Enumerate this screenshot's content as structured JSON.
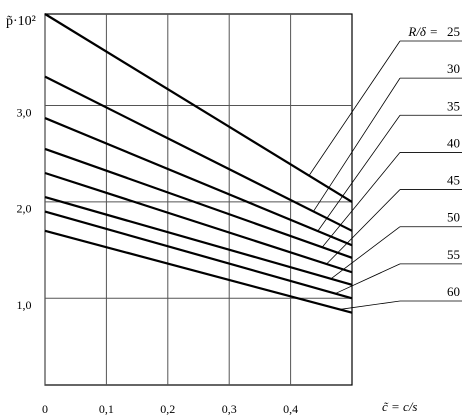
{
  "chart_data": {
    "type": "line",
    "y_label": "p̃·10²",
    "x_label": "c̃ = c/s",
    "legend_title": "R/δ =",
    "x": [
      0,
      0.5
    ],
    "xlim": [
      0,
      0.5
    ],
    "xticks": [
      0,
      {
        "value": 0.1,
        "label": "0,1"
      },
      {
        "value": 0.2,
        "label": "0,2"
      },
      {
        "value": 0.3,
        "label": "0,3"
      },
      {
        "value": 0.4,
        "label": "0,4"
      }
    ],
    "ylim": [
      0.1,
      3.95
    ],
    "yticks": [
      {
        "value": 1,
        "label": "1,0"
      },
      {
        "value": 2,
        "label": "2,0"
      },
      {
        "value": 3,
        "label": "3,0"
      }
    ],
    "grid": true,
    "series": [
      {
        "name": "25",
        "color": "#000000",
        "values": [
          3.95,
          2.0
        ]
      },
      {
        "name": "30",
        "color": "#000000",
        "values": [
          3.3,
          1.7
        ]
      },
      {
        "name": "35",
        "color": "#000000",
        "values": [
          2.87,
          1.55
        ]
      },
      {
        "name": "40",
        "color": "#000000",
        "values": [
          2.55,
          1.42
        ]
      },
      {
        "name": "45",
        "color": "#000000",
        "values": [
          2.3,
          1.27
        ]
      },
      {
        "name": "50",
        "color": "#000000",
        "values": [
          2.05,
          1.14
        ]
      },
      {
        "name": "55",
        "color": "#000000",
        "values": [
          1.9,
          1.0
        ]
      },
      {
        "name": "60",
        "color": "#000000",
        "values": [
          1.7,
          0.85
        ]
      }
    ]
  }
}
